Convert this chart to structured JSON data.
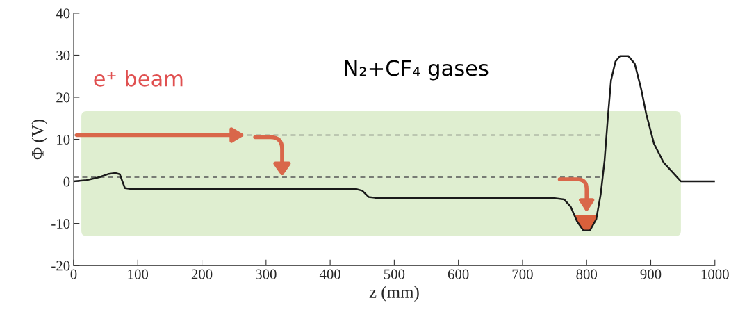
{
  "chart_data": {
    "type": "line",
    "xlabel": "z (mm)",
    "ylabel": "Φ (V)",
    "x": [
      0,
      20,
      40,
      55,
      65,
      72,
      76,
      80,
      90,
      200,
      440,
      450,
      460,
      470,
      600,
      750,
      765,
      775,
      785,
      795,
      805,
      815,
      822,
      828,
      833,
      838,
      845,
      852,
      865,
      875,
      885,
      893,
      905,
      920,
      935,
      947,
      1000
    ],
    "series": [
      {
        "color": "#1a1a1a",
        "values": [
          0,
          0.3,
          1,
          1.8,
          2,
          1.7,
          0,
          -1.6,
          -1.8,
          -1.8,
          -1.8,
          -2.2,
          -3.7,
          -3.9,
          -3.9,
          -4,
          -4.3,
          -6,
          -9.5,
          -11.7,
          -11.7,
          -9,
          -3,
          5,
          15,
          24,
          28.5,
          29.8,
          29.8,
          28,
          22,
          16,
          9,
          4.5,
          2,
          0,
          0
        ]
      }
    ],
    "xlim": [
      0,
      1000
    ],
    "xticks": [
      0,
      100,
      200,
      300,
      400,
      500,
      600,
      700,
      800,
      900,
      1000
    ],
    "ylim": [
      -20,
      40
    ],
    "yticks": [
      -20,
      -10,
      0,
      10,
      20,
      30,
      40
    ],
    "ref_lines": [
      {
        "axis": "y",
        "value": 11,
        "color": "#555555",
        "line_style": "dashed"
      },
      {
        "axis": "y",
        "value": 1,
        "color": "#555555",
        "line_style": "dashed"
      }
    ],
    "annotations": [
      "e⁺ beam",
      "N₂+CF₄ gases"
    ],
    "grid": false,
    "legend": false,
    "marker": "none",
    "line_style": "solid"
  }
}
